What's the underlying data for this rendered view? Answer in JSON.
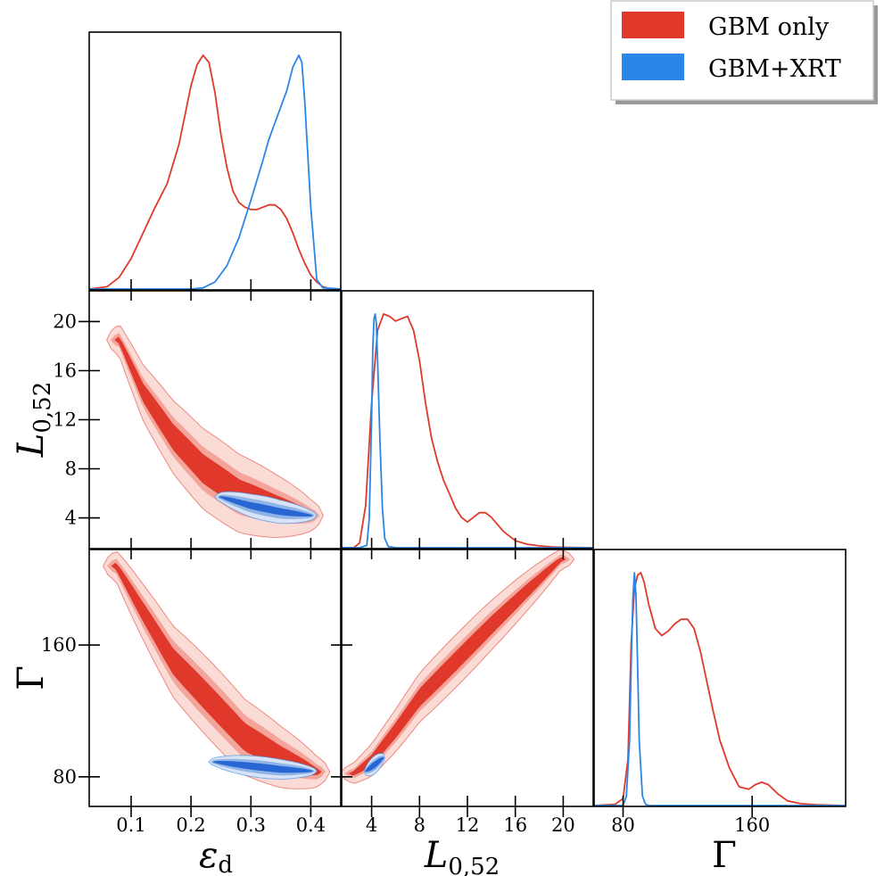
{
  "chart_data": {
    "type": "corner",
    "parameters": [
      {
        "symbol": "ε",
        "subscript": "d",
        "range": [
          0.03,
          0.45
        ],
        "ticks": [
          0.1,
          0.2,
          0.3,
          0.4
        ],
        "tick_labels": [
          "0.1",
          "0.2",
          "0.3",
          "0.4"
        ]
      },
      {
        "symbol": "L",
        "subscript": "0,52",
        "range": [
          1.5,
          22.5
        ],
        "ticks": [
          4,
          8,
          12,
          16,
          20
        ],
        "tick_labels": [
          "4",
          "8",
          "12",
          "16",
          "20"
        ]
      },
      {
        "symbol": "Γ",
        "subscript": "",
        "range": [
          62,
          218
        ],
        "ticks": [
          80,
          160
        ],
        "tick_labels": [
          "80",
          "160"
        ]
      }
    ],
    "legend": {
      "placement": "top-right",
      "entries": [
        "GBM only",
        "GBM+XRT"
      ]
    },
    "colors": {
      "gbm": "#e0392b",
      "xrt": "#2a87e8",
      "gbm_fills": [
        "#fadbd6",
        "#f3a59b",
        "#e0392b"
      ],
      "xrt_fills": [
        "#d8e4f6",
        "#91b4e8",
        "#2766d3"
      ]
    },
    "series": [
      {
        "name": "GBM only",
        "marginals": [
          {
            "x": [
              0.03,
              0.06,
              0.08,
              0.1,
              0.12,
              0.14,
              0.16,
              0.18,
              0.2,
              0.21,
              0.22,
              0.23,
              0.24,
              0.25,
              0.26,
              0.27,
              0.28,
              0.29,
              0.3,
              0.31,
              0.32,
              0.33,
              0.34,
              0.35,
              0.36,
              0.37,
              0.38,
              0.39,
              0.4,
              0.41,
              0.42,
              0.43,
              0.45
            ],
            "y": [
              0,
              0.01,
              0.05,
              0.13,
              0.24,
              0.35,
              0.45,
              0.62,
              0.87,
              0.96,
              1.0,
              0.97,
              0.84,
              0.66,
              0.52,
              0.42,
              0.37,
              0.35,
              0.34,
              0.34,
              0.35,
              0.36,
              0.36,
              0.34,
              0.3,
              0.24,
              0.17,
              0.11,
              0.06,
              0.03,
              0.01,
              0.003,
              0
            ]
          },
          {
            "x": [
              1.5,
              2.5,
              3.0,
              3.5,
              4.0,
              4.5,
              5.0,
              5.5,
              6.0,
              6.5,
              7.0,
              7.5,
              8.0,
              8.5,
              9.0,
              9.5,
              10.0,
              10.5,
              11.0,
              11.5,
              12.0,
              12.5,
              13.0,
              13.5,
              14.0,
              15.0,
              16.0,
              17.0,
              18.0,
              19.0,
              20.0,
              22.5
            ],
            "y": [
              0,
              0,
              0.02,
              0.18,
              0.62,
              0.93,
              1.0,
              0.99,
              0.97,
              0.98,
              0.99,
              0.93,
              0.8,
              0.62,
              0.47,
              0.37,
              0.29,
              0.23,
              0.17,
              0.13,
              0.11,
              0.13,
              0.15,
              0.15,
              0.13,
              0.07,
              0.03,
              0.015,
              0.008,
              0.004,
              0.002,
              0
            ]
          },
          {
            "x": [
              62,
              75,
              80,
              83,
              85,
              87,
              89,
              91,
              93,
              96,
              100,
              104,
              108,
              112,
              116,
              120,
              124,
              128,
              132,
              136,
              140,
              146,
              152,
              158,
              162,
              166,
              170,
              176,
              182,
              190,
              200,
              218
            ],
            "y": [
              0,
              0.005,
              0.03,
              0.2,
              0.7,
              0.93,
              0.99,
              1.0,
              0.96,
              0.86,
              0.76,
              0.73,
              0.75,
              0.78,
              0.8,
              0.8,
              0.76,
              0.66,
              0.53,
              0.4,
              0.28,
              0.16,
              0.08,
              0.07,
              0.09,
              0.1,
              0.09,
              0.05,
              0.02,
              0.008,
              0.003,
              0
            ]
          }
        ],
        "joint_2d": [
          {
            "pair": [
              "ε_d",
              "L_0,52"
            ],
            "ridge": [
              [
                0.08,
                18.5
              ],
              [
                0.12,
                14.2
              ],
              [
                0.17,
                10.6
              ],
              [
                0.22,
                8.0
              ],
              [
                0.28,
                6.0
              ],
              [
                0.34,
                5.0
              ],
              [
                0.4,
                4.2
              ]
            ],
            "half_widths": [
              1.2,
              1.8,
              3.3
            ]
          },
          {
            "pair": [
              "ε_d",
              "Γ"
            ],
            "ridge": [
              [
                0.075,
                208
              ],
              [
                0.12,
                180
              ],
              [
                0.17,
                150
              ],
              [
                0.23,
                127
              ],
              [
                0.29,
                104
              ],
              [
                0.35,
                92
              ],
              [
                0.41,
                83
              ]
            ],
            "half_widths": [
              9,
              14,
              24
            ]
          },
          {
            "pair": [
              "L_0,52",
              "Γ"
            ],
            "ridge": [
              [
                2.5,
                82
              ],
              [
                4,
                90
              ],
              [
                6,
                108
              ],
              [
                8,
                128
              ],
              [
                11,
                150
              ],
              [
                14,
                172
              ],
              [
                17,
                193
              ],
              [
                19.8,
                212
              ]
            ],
            "half_widths": [
              6,
              9,
              16
            ]
          }
        ]
      },
      {
        "name": "GBM+XRT",
        "marginals": [
          {
            "x": [
              0.03,
              0.2,
              0.22,
              0.24,
              0.26,
              0.28,
              0.3,
              0.32,
              0.33,
              0.34,
              0.35,
              0.36,
              0.37,
              0.38,
              0.385,
              0.39,
              0.4,
              0.41,
              0.42,
              0.45
            ],
            "y": [
              0,
              0,
              0.005,
              0.03,
              0.1,
              0.22,
              0.38,
              0.55,
              0.64,
              0.71,
              0.78,
              0.85,
              0.95,
              1.0,
              0.97,
              0.8,
              0.35,
              0.04,
              0.005,
              0
            ]
          },
          {
            "x": [
              1.5,
              3.0,
              3.6,
              3.8,
              4.0,
              4.1,
              4.2,
              4.3,
              4.4,
              4.5,
              4.7,
              4.9,
              5.1,
              5.4,
              6.0,
              22.5
            ],
            "y": [
              0,
              0,
              0.01,
              0.12,
              0.55,
              0.85,
              0.98,
              1.0,
              0.96,
              0.8,
              0.45,
              0.17,
              0.04,
              0.005,
              0,
              0
            ]
          },
          {
            "x": [
              62,
              80,
              82,
              84,
              85,
              86,
              87,
              88,
              89,
              90,
              92,
              94,
              96,
              218
            ],
            "y": [
              0,
              0,
              0.04,
              0.28,
              0.6,
              0.88,
              1.0,
              0.9,
              0.6,
              0.28,
              0.04,
              0.005,
              0,
              0
            ]
          }
        ],
        "joint_2d": [
          {
            "pair": [
              "ε_d",
              "L_0,52"
            ],
            "ridge": [
              [
                0.25,
                5.7
              ],
              [
                0.3,
                5.0
              ],
              [
                0.35,
                4.5
              ],
              [
                0.4,
                4.2
              ]
            ],
            "half_widths": [
              0.3,
              0.6,
              1.0
            ]
          },
          {
            "pair": [
              "ε_d",
              "Γ"
            ],
            "ridge": [
              [
                0.24,
                89
              ],
              [
                0.3,
                86.5
              ],
              [
                0.35,
                84.5
              ],
              [
                0.4,
                83.5
              ]
            ],
            "half_widths": [
              2.2,
              4,
              6.5
            ]
          },
          {
            "pair": [
              "L_0,52",
              "Γ"
            ],
            "ridge": [
              [
                3.5,
                83.5
              ],
              [
                4.3,
                87.5
              ],
              [
                5.0,
                91.5
              ]
            ],
            "half_widths": [
              2,
              3.5,
              5.5
            ]
          }
        ]
      }
    ]
  }
}
